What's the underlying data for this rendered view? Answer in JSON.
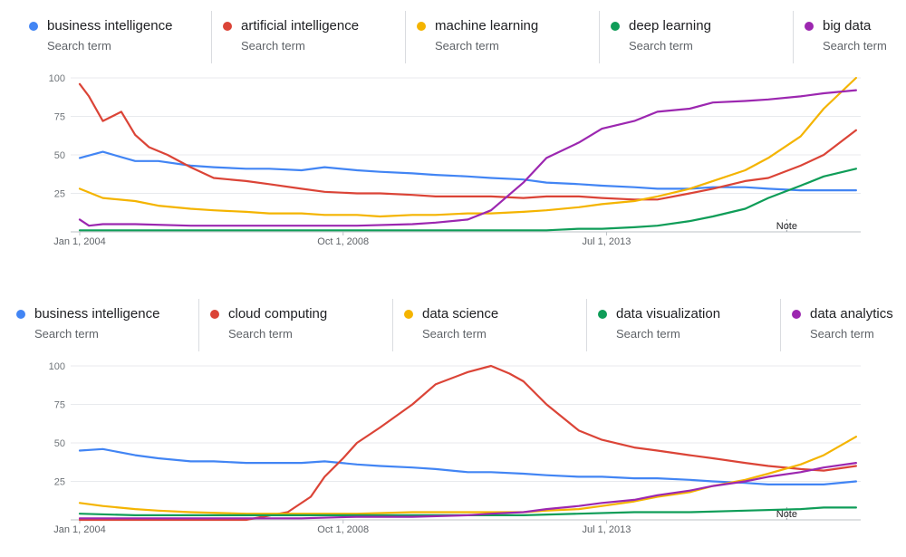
{
  "colors": {
    "blue": "#4285F4",
    "red": "#DB4437",
    "yellow": "#F4B400",
    "green": "#0F9D58",
    "purple": "#9C27B0"
  },
  "legend_subtitle": "Search term",
  "chart_data": [
    {
      "type": "line",
      "ylim": [
        0,
        100
      ],
      "yticks": [
        "100",
        "75",
        "50",
        "25"
      ],
      "xticks": [
        "Jan 1, 2004",
        "Oct 1, 2008",
        "Jul 1, 2013"
      ],
      "xlim": [
        "2004-01",
        "2018-02"
      ],
      "grid": true,
      "annotation": {
        "text": "Note",
        "x": "2016-10"
      },
      "series": [
        {
          "name": "business intelligence",
          "color": "#4285F4",
          "x": [
            "2004-01",
            "2004-06",
            "2005-01",
            "2005-06",
            "2006-01",
            "2006-06",
            "2007-01",
            "2007-06",
            "2008-01",
            "2008-06",
            "2009-01",
            "2009-06",
            "2010-01",
            "2010-06",
            "2011-01",
            "2011-06",
            "2012-01",
            "2012-06",
            "2013-01",
            "2013-06",
            "2014-01",
            "2014-06",
            "2015-01",
            "2015-06",
            "2016-01",
            "2016-06",
            "2017-01",
            "2017-06",
            "2018-01"
          ],
          "values": [
            48,
            52,
            46,
            46,
            43,
            42,
            41,
            41,
            40,
            42,
            40,
            39,
            38,
            37,
            36,
            35,
            34,
            32,
            31,
            30,
            29,
            28,
            28,
            29,
            29,
            28,
            27,
            27,
            27
          ]
        },
        {
          "name": "artificial intelligence",
          "color": "#DB4437",
          "x": [
            "2004-01",
            "2004-03",
            "2004-06",
            "2004-10",
            "2005-01",
            "2005-04",
            "2005-08",
            "2006-01",
            "2006-06",
            "2007-01",
            "2007-06",
            "2008-01",
            "2008-06",
            "2009-01",
            "2009-06",
            "2010-01",
            "2010-06",
            "2011-01",
            "2011-06",
            "2012-01",
            "2012-06",
            "2013-01",
            "2013-06",
            "2014-01",
            "2014-06",
            "2015-01",
            "2015-06",
            "2016-01",
            "2016-06",
            "2017-01",
            "2017-06",
            "2018-01"
          ],
          "values": [
            96,
            88,
            72,
            78,
            63,
            55,
            50,
            42,
            35,
            33,
            31,
            28,
            26,
            25,
            25,
            24,
            23,
            23,
            23,
            22,
            23,
            23,
            22,
            21,
            21,
            25,
            28,
            33,
            35,
            43,
            50,
            66
          ]
        },
        {
          "name": "machine learning",
          "color": "#F4B400",
          "x": [
            "2004-01",
            "2004-06",
            "2005-01",
            "2005-06",
            "2006-01",
            "2006-06",
            "2007-01",
            "2007-06",
            "2008-01",
            "2008-06",
            "2009-01",
            "2009-06",
            "2010-01",
            "2010-06",
            "2011-01",
            "2011-06",
            "2012-01",
            "2012-06",
            "2013-01",
            "2013-06",
            "2014-01",
            "2014-06",
            "2015-01",
            "2015-06",
            "2016-01",
            "2016-06",
            "2017-01",
            "2017-06",
            "2018-01"
          ],
          "values": [
            28,
            22,
            20,
            17,
            15,
            14,
            13,
            12,
            12,
            11,
            11,
            10,
            11,
            11,
            12,
            12,
            13,
            14,
            16,
            18,
            20,
            23,
            28,
            33,
            40,
            48,
            62,
            80,
            100
          ]
        },
        {
          "name": "deep learning",
          "color": "#0F9D58",
          "x": [
            "2004-01",
            "2005-01",
            "2006-01",
            "2007-01",
            "2008-01",
            "2009-01",
            "2010-01",
            "2011-01",
            "2012-01",
            "2012-06",
            "2013-01",
            "2013-06",
            "2014-01",
            "2014-06",
            "2015-01",
            "2015-06",
            "2016-01",
            "2016-06",
            "2017-01",
            "2017-06",
            "2018-01"
          ],
          "values": [
            1,
            1,
            1,
            1,
            1,
            1,
            1,
            1,
            1,
            1,
            2,
            2,
            3,
            4,
            7,
            10,
            15,
            22,
            30,
            36,
            41
          ]
        },
        {
          "name": "big data",
          "color": "#9C27B0",
          "x": [
            "2004-01",
            "2004-03",
            "2004-06",
            "2005-01",
            "2006-01",
            "2007-01",
            "2008-01",
            "2009-01",
            "2010-01",
            "2010-06",
            "2011-01",
            "2011-06",
            "2012-01",
            "2012-06",
            "2013-01",
            "2013-06",
            "2014-01",
            "2014-06",
            "2015-01",
            "2015-06",
            "2016-01",
            "2016-06",
            "2017-01",
            "2017-06",
            "2018-01"
          ],
          "values": [
            8,
            4,
            5,
            5,
            4,
            4,
            4,
            4,
            5,
            6,
            8,
            14,
            32,
            48,
            58,
            67,
            72,
            78,
            80,
            84,
            85,
            86,
            88,
            90,
            92
          ]
        }
      ]
    },
    {
      "type": "line",
      "ylim": [
        0,
        100
      ],
      "yticks": [
        "100",
        "75",
        "50",
        "25"
      ],
      "xticks": [
        "Jan 1, 2004",
        "Oct 1, 2008",
        "Jul 1, 2013"
      ],
      "xlim": [
        "2004-01",
        "2018-02"
      ],
      "grid": true,
      "annotation": {
        "text": "Note",
        "x": "2016-10"
      },
      "series": [
        {
          "name": "business intelligence",
          "color": "#4285F4",
          "x": [
            "2004-01",
            "2004-06",
            "2005-01",
            "2005-06",
            "2006-01",
            "2006-06",
            "2007-01",
            "2007-06",
            "2008-01",
            "2008-06",
            "2009-01",
            "2009-06",
            "2010-01",
            "2010-06",
            "2011-01",
            "2011-06",
            "2012-01",
            "2012-06",
            "2013-01",
            "2013-06",
            "2014-01",
            "2014-06",
            "2015-01",
            "2015-06",
            "2016-01",
            "2016-06",
            "2017-01",
            "2017-06",
            "2018-01"
          ],
          "values": [
            45,
            46,
            42,
            40,
            38,
            38,
            37,
            37,
            37,
            38,
            36,
            35,
            34,
            33,
            31,
            31,
            30,
            29,
            28,
            28,
            27,
            27,
            26,
            25,
            24,
            23,
            23,
            23,
            25
          ]
        },
        {
          "name": "cloud computing",
          "color": "#DB4437",
          "x": [
            "2004-01",
            "2005-01",
            "2006-01",
            "2007-01",
            "2007-10",
            "2008-03",
            "2008-06",
            "2008-10",
            "2009-01",
            "2009-06",
            "2010-01",
            "2010-06",
            "2011-01",
            "2011-06",
            "2011-10",
            "2012-01",
            "2012-06",
            "2013-01",
            "2013-06",
            "2014-01",
            "2014-06",
            "2015-01",
            "2015-06",
            "2016-01",
            "2016-06",
            "2017-01",
            "2017-06",
            "2018-01"
          ],
          "values": [
            0,
            0,
            0,
            0,
            5,
            15,
            28,
            40,
            50,
            60,
            75,
            88,
            96,
            100,
            95,
            90,
            75,
            58,
            52,
            47,
            45,
            42,
            40,
            37,
            35,
            33,
            32,
            35
          ]
        },
        {
          "name": "data science",
          "color": "#F4B400",
          "x": [
            "2004-01",
            "2004-06",
            "2005-01",
            "2005-06",
            "2006-01",
            "2007-01",
            "2008-01",
            "2009-01",
            "2010-01",
            "2011-01",
            "2012-01",
            "2012-06",
            "2013-01",
            "2013-06",
            "2014-01",
            "2014-06",
            "2015-01",
            "2015-06",
            "2016-01",
            "2016-06",
            "2017-01",
            "2017-06",
            "2018-01"
          ],
          "values": [
            11,
            9,
            7,
            6,
            5,
            4,
            4,
            4,
            5,
            5,
            5,
            6,
            7,
            9,
            12,
            15,
            18,
            22,
            26,
            30,
            36,
            42,
            54
          ]
        },
        {
          "name": "data visualization",
          "color": "#0F9D58",
          "x": [
            "2004-01",
            "2005-01",
            "2006-01",
            "2007-01",
            "2008-01",
            "2009-01",
            "2010-01",
            "2011-01",
            "2012-01",
            "2013-01",
            "2014-01",
            "2015-01",
            "2016-01",
            "2017-01",
            "2017-06",
            "2018-01"
          ],
          "values": [
            4,
            3,
            3,
            3,
            3,
            3,
            3,
            3,
            3,
            4,
            5,
            5,
            6,
            7,
            8,
            8
          ]
        },
        {
          "name": "data analytics",
          "color": "#9C27B0",
          "x": [
            "2004-01",
            "2005-01",
            "2006-01",
            "2007-01",
            "2008-01",
            "2009-01",
            "2010-01",
            "2011-01",
            "2011-06",
            "2012-01",
            "2012-06",
            "2013-01",
            "2013-06",
            "2014-01",
            "2014-06",
            "2015-01",
            "2015-06",
            "2016-01",
            "2016-06",
            "2017-01",
            "2017-06",
            "2018-01"
          ],
          "values": [
            1,
            1,
            1,
            1,
            1,
            2,
            2,
            3,
            4,
            5,
            7,
            9,
            11,
            13,
            16,
            19,
            22,
            25,
            28,
            31,
            34,
            37
          ]
        }
      ]
    }
  ]
}
